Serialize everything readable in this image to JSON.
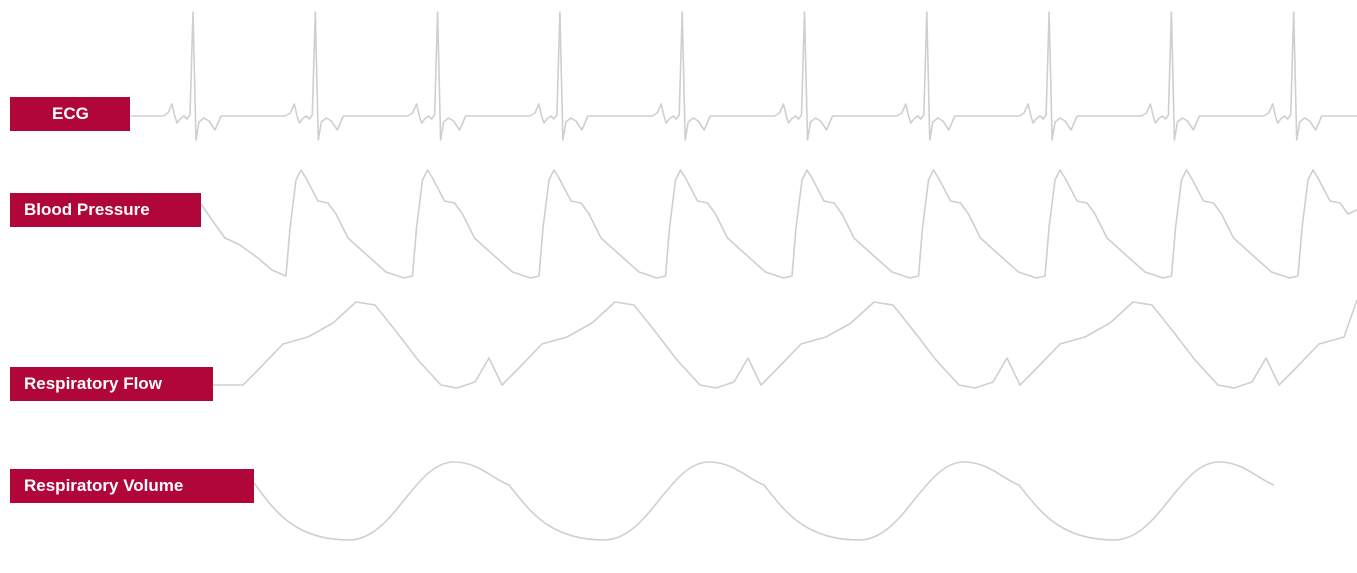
{
  "colors": {
    "label_background": "#b0063a",
    "label_text": "#ffffff",
    "trace": "#cfcfcf",
    "background": "#ffffff"
  },
  "labels": {
    "ecg": "ECG",
    "blood_pressure": "Blood Pressure",
    "respiratory_flow": "Respiratory Flow",
    "respiratory_volume": "Respiratory Volume"
  },
  "traces": [
    {
      "signal": "ecg",
      "beats": 10
    },
    {
      "signal": "blood_pressure",
      "beats": 9
    },
    {
      "signal": "respiratory_flow",
      "breaths": 5
    },
    {
      "signal": "respiratory_volume",
      "breaths": 4
    }
  ]
}
